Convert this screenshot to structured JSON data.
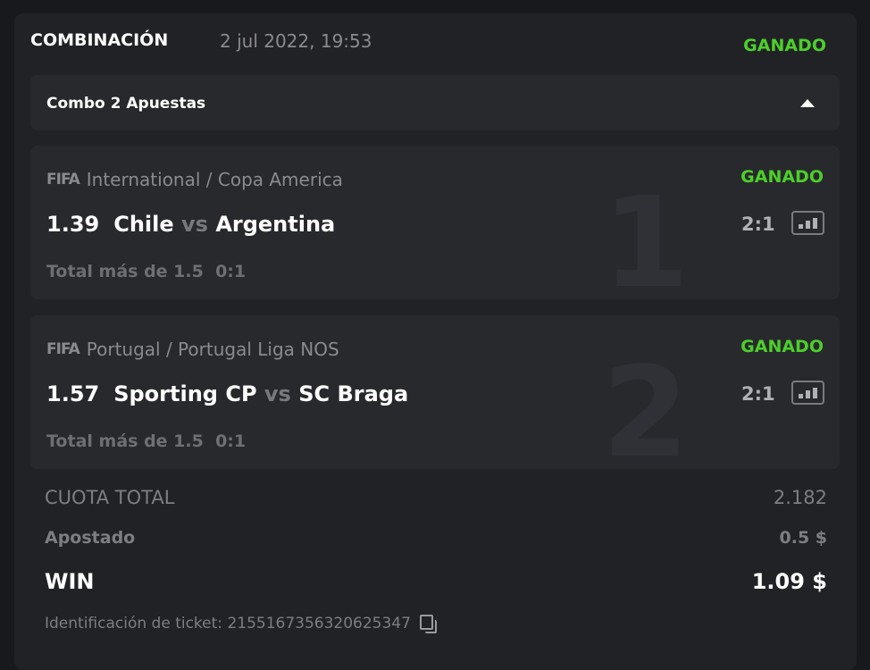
{
  "header": {
    "title": "COMBINACIÓN",
    "date": "2 jul 2022, 19:53",
    "status": "GANADO"
  },
  "combo": {
    "label": "Combo 2 Apuestas",
    "expanded": true
  },
  "bets": [
    {
      "index": "1",
      "brand": "FIFA",
      "league": "International / Copa America",
      "status": "GANADO",
      "odds": "1.39",
      "home": "Chile",
      "vs": "vs",
      "away": "Argentina",
      "market": "Total más de 1.5",
      "market_score": "0:1",
      "score": "2:1"
    },
    {
      "index": "2",
      "brand": "FIFA",
      "league": "Portugal / Portugal Liga NOS",
      "status": "GANADO",
      "odds": "1.57",
      "home": "Sporting CP",
      "vs": "vs",
      "away": "SC Braga",
      "market": "Total más de 1.5",
      "market_score": "0:1",
      "score": "2:1"
    }
  ],
  "summary": {
    "total_odds_label": "CUOTA TOTAL",
    "total_odds": "2.182",
    "stake_label": "Apostado",
    "stake": "0.5 $",
    "win_label": "WIN",
    "win": "1.09 $",
    "ticket_label": "Identificación de ticket:",
    "ticket_id": "2155167356320625347"
  },
  "colors": {
    "win_green": "#4ccf2a",
    "background": "#18191d",
    "card": "#212226"
  }
}
